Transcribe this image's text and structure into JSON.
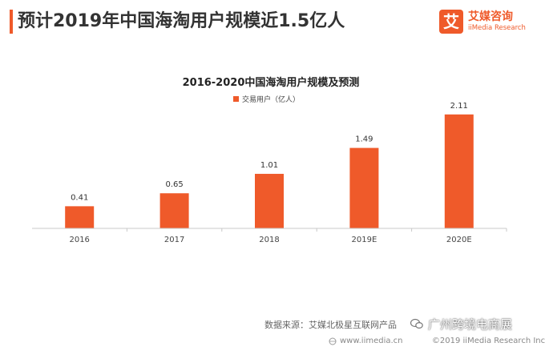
{
  "header": {
    "title": "预计2019年中国海淘用户规模近1.5亿人"
  },
  "brand": {
    "mark": "艾",
    "name": "艾媒咨询",
    "sub": "iiMedia Research",
    "color": "#ef5a2a"
  },
  "chart_data": {
    "type": "bar",
    "title": "2016-2020中国海淘用户规模及预测",
    "categories": [
      "2016",
      "2017",
      "2018",
      "2019E",
      "2020E"
    ],
    "series": [
      {
        "name": "交易用户（亿人）",
        "values": [
          0.41,
          0.65,
          1.01,
          1.49,
          2.11
        ],
        "color": "#ef5a2a"
      }
    ],
    "data_labels": [
      "0.41",
      "0.65",
      "1.01",
      "1.49",
      "2.11"
    ],
    "xlabel": "",
    "ylabel": "",
    "ylim": [
      0,
      2.3
    ],
    "grid": false,
    "legend_position": "top-center"
  },
  "footer": {
    "source": "数据来源：艾媒北极星互联网产品",
    "watermark": "广州跨境电商展",
    "url": "www.iimedia.cn",
    "copyright": "©2019 iiMedia Research Inc"
  }
}
